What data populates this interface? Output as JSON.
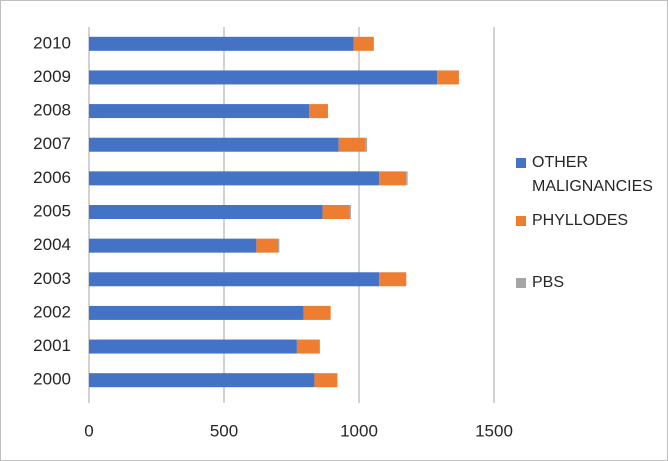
{
  "chart_data": {
    "type": "stacked-bar-horizontal",
    "categories": [
      "2000",
      "2001",
      "2002",
      "2003",
      "2004",
      "2005",
      "2006",
      "2007",
      "2008",
      "2009",
      "2010"
    ],
    "series": [
      {
        "name": "OTHER MALIGNANCIES",
        "color": "#4472c4",
        "values": [
          835,
          770,
          795,
          1075,
          620,
          865,
          1075,
          925,
          815,
          1290,
          980
        ]
      },
      {
        "name": "PHYLLODES",
        "color": "#ed7d31",
        "values": [
          85,
          85,
          100,
          100,
          80,
          100,
          100,
          100,
          70,
          80,
          75
        ]
      },
      {
        "name": "PBS",
        "color": "#a5a5a5",
        "values": [
          0,
          0,
          0,
          0,
          5,
          5,
          5,
          5,
          0,
          0,
          0
        ]
      }
    ],
    "xlim": [
      0,
      1500
    ],
    "xticks": [
      0,
      500,
      1000,
      1500
    ],
    "grid": true,
    "legend": "right"
  }
}
